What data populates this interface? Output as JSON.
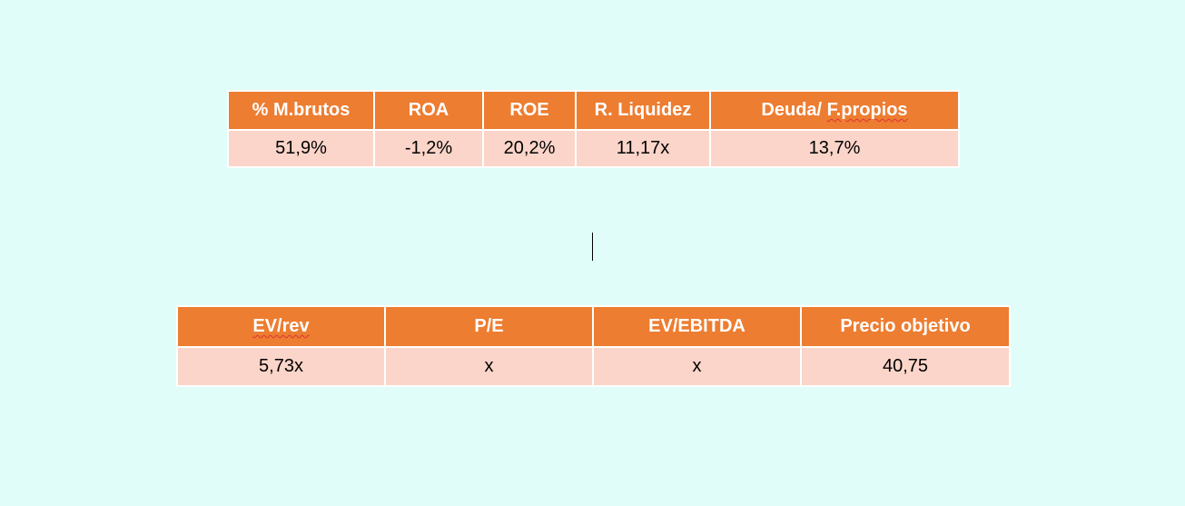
{
  "ratios_table": {
    "headers": [
      "% M.brutos",
      "ROA",
      "ROE",
      "R. Liquidez",
      "Deuda/ F.propios"
    ],
    "values": [
      "51,9%",
      "-1,2%",
      "20,2%",
      "11,17x",
      "13,7%"
    ]
  },
  "valuation_table": {
    "headers": [
      "EV/rev",
      "P/E",
      "EV/EBITDA",
      "Precio objetivo"
    ],
    "values": [
      "5,73x",
      "x",
      "x",
      "40,75"
    ]
  },
  "colors": {
    "background": "#e1fdf9",
    "header_fill": "#ed7d31",
    "cell_fill": "#fbd5c9"
  }
}
